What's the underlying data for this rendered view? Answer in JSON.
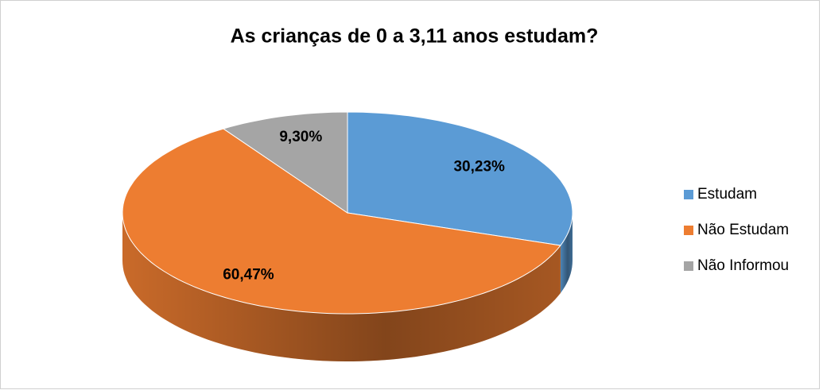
{
  "chart_data": {
    "type": "pie",
    "title": "As crianças de 0 a 3,11 anos estudam?",
    "categories": [
      "Estudam",
      "Não Estudam",
      "Não Informou"
    ],
    "values": [
      30.23,
      60.47,
      9.3
    ],
    "value_labels": [
      "30,23%",
      "60,47%",
      "9,30%"
    ],
    "colors": [
      "#5b9bd5",
      "#ed7d31",
      "#a5a5a5"
    ],
    "legend": "right"
  }
}
